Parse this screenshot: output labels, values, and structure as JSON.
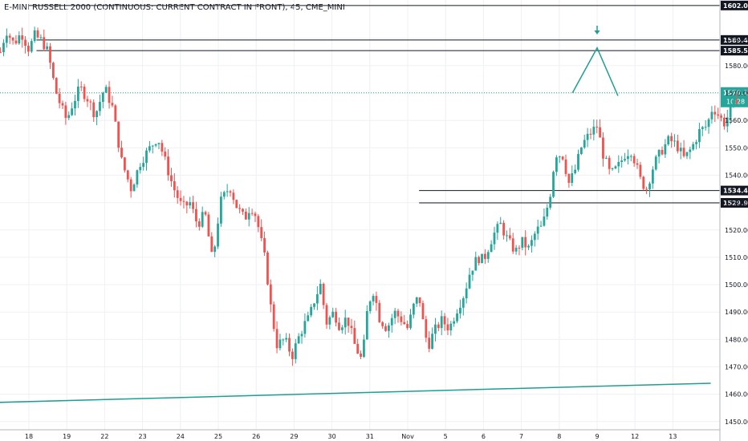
{
  "header": {
    "title": "E-MINI RUSSELL 2000 (CONTINUOUS: CURRENT CONTRACT IN FRONT), 45, CME_MINI"
  },
  "colors": {
    "up": "#26a69a",
    "down": "#ef5350",
    "annotation": "#1f9e92",
    "last_price_bg": "#26a69a",
    "level_line": "#131722",
    "last_price_line": "#26a69a"
  },
  "chart_data": {
    "type": "candlestick",
    "symbol": "E-MINI RUSSELL 2000 (CONTINUOUS: CURRENT CONTRACT IN FRONT)",
    "interval": "45",
    "exchange": "CME_MINI",
    "ylim": [
      1447,
      1604
    ],
    "grid": true,
    "x_ticks": [
      "18",
      "19",
      "22",
      "23",
      "24",
      "25",
      "26",
      "29",
      "30",
      "31",
      "Nov",
      "5",
      "6",
      "7",
      "8",
      "9",
      "12",
      "13"
    ],
    "y_ticks": [
      1450,
      1460,
      1470,
      1480,
      1490,
      1500,
      1510,
      1520,
      1530,
      1540,
      1550,
      1560,
      1570,
      1580,
      1590
    ],
    "horizontal_levels": [
      {
        "price": 1602.0,
        "label": "1602.00",
        "from_tick": 0
      },
      {
        "price": 1589.4,
        "label": "1589.40",
        "from_tick": 0.2
      },
      {
        "price": 1585.5,
        "label": "1585.50",
        "from_tick": 0.2
      },
      {
        "price": 1534.4,
        "label": "1534.40",
        "from_tick": 10.3
      },
      {
        "price": 1529.9,
        "label": "1529.90",
        "from_tick": 10.3
      }
    ],
    "last_price": {
      "price": 1570.1,
      "label": "1570.10",
      "countdown": "10:28"
    },
    "trendline": {
      "start": {
        "tick": -0.8,
        "price": 1457.0
      },
      "end": {
        "tick": 18.0,
        "price": 1464.0
      }
    },
    "projection": {
      "points": [
        {
          "tick": 14.35,
          "price": 1570.1
        },
        {
          "tick": 15.0,
          "price": 1586.5
        },
        {
          "tick": 15.55,
          "price": 1569.0
        }
      ],
      "arrow": {
        "tick": 15.0,
        "price": 1592
      }
    },
    "path": [
      [
        -0.75,
        1585
      ],
      [
        -0.6,
        1593
      ],
      [
        -0.4,
        1588
      ],
      [
        -0.2,
        1592
      ],
      [
        0.0,
        1586
      ],
      [
        0.15,
        1591
      ],
      [
        0.35,
        1589
      ],
      [
        0.5,
        1585
      ],
      [
        0.7,
        1571
      ],
      [
        0.85,
        1565
      ],
      [
        1.0,
        1560
      ],
      [
        1.15,
        1566
      ],
      [
        1.35,
        1572
      ],
      [
        1.55,
        1568
      ],
      [
        1.75,
        1562
      ],
      [
        2.0,
        1572
      ],
      [
        2.2,
        1565
      ],
      [
        2.45,
        1545
      ],
      [
        2.7,
        1535
      ],
      [
        2.95,
        1545
      ],
      [
        3.15,
        1549
      ],
      [
        3.4,
        1554
      ],
      [
        3.6,
        1545
      ],
      [
        3.8,
        1536
      ],
      [
        4.05,
        1528
      ],
      [
        4.25,
        1530
      ],
      [
        4.45,
        1522
      ],
      [
        4.65,
        1526
      ],
      [
        4.85,
        1508
      ],
      [
        5.05,
        1530
      ],
      [
        5.3,
        1536
      ],
      [
        5.5,
        1528
      ],
      [
        5.7,
        1524
      ],
      [
        5.85,
        1529
      ],
      [
        6.0,
        1525
      ],
      [
        6.1,
        1518
      ],
      [
        6.25,
        1508
      ],
      [
        6.4,
        1490
      ],
      [
        6.55,
        1478
      ],
      [
        6.75,
        1480
      ],
      [
        6.95,
        1474
      ],
      [
        7.1,
        1480
      ],
      [
        7.25,
        1485
      ],
      [
        7.4,
        1488
      ],
      [
        7.55,
        1495
      ],
      [
        7.7,
        1500
      ],
      [
        7.85,
        1486
      ],
      [
        8.05,
        1490
      ],
      [
        8.2,
        1485
      ],
      [
        8.4,
        1488
      ],
      [
        8.6,
        1478
      ],
      [
        8.8,
        1472
      ],
      [
        8.95,
        1493
      ],
      [
        9.1,
        1498
      ],
      [
        9.25,
        1488
      ],
      [
        9.45,
        1484
      ],
      [
        9.65,
        1490
      ],
      [
        9.85,
        1487
      ],
      [
        10.0,
        1484
      ],
      [
        10.15,
        1492
      ],
      [
        10.3,
        1496
      ],
      [
        10.45,
        1482
      ],
      [
        10.55,
        1478
      ],
      [
        10.7,
        1483
      ],
      [
        10.9,
        1487
      ],
      [
        11.1,
        1484
      ],
      [
        11.3,
        1491
      ],
      [
        11.5,
        1497
      ],
      [
        11.65,
        1505
      ],
      [
        11.85,
        1510
      ],
      [
        12.0,
        1509
      ],
      [
        12.25,
        1518
      ],
      [
        12.45,
        1522
      ],
      [
        12.65,
        1516
      ],
      [
        12.85,
        1512
      ],
      [
        13.0,
        1516
      ],
      [
        13.2,
        1513
      ],
      [
        13.4,
        1520
      ],
      [
        13.55,
        1521
      ],
      [
        13.75,
        1532
      ],
      [
        13.9,
        1548
      ],
      [
        14.1,
        1547
      ],
      [
        14.25,
        1537
      ],
      [
        14.4,
        1541
      ],
      [
        14.6,
        1551
      ],
      [
        14.8,
        1555
      ],
      [
        15.0,
        1558
      ],
      [
        15.15,
        1548
      ],
      [
        15.35,
        1540
      ],
      [
        15.55,
        1543
      ],
      [
        15.75,
        1548
      ],
      [
        15.9,
        1549
      ],
      [
        16.0,
        1545
      ],
      [
        16.15,
        1538
      ],
      [
        16.3,
        1535
      ],
      [
        16.5,
        1544
      ],
      [
        16.7,
        1549
      ],
      [
        16.9,
        1553
      ],
      [
        17.1,
        1551
      ],
      [
        17.3,
        1546
      ],
      [
        17.5,
        1550
      ],
      [
        17.7,
        1556
      ],
      [
        17.9,
        1558
      ],
      [
        18.05,
        1565
      ],
      [
        18.2,
        1562
      ],
      [
        18.35,
        1559
      ],
      [
        18.55,
        1564
      ],
      [
        18.75,
        1570
      ]
    ]
  }
}
